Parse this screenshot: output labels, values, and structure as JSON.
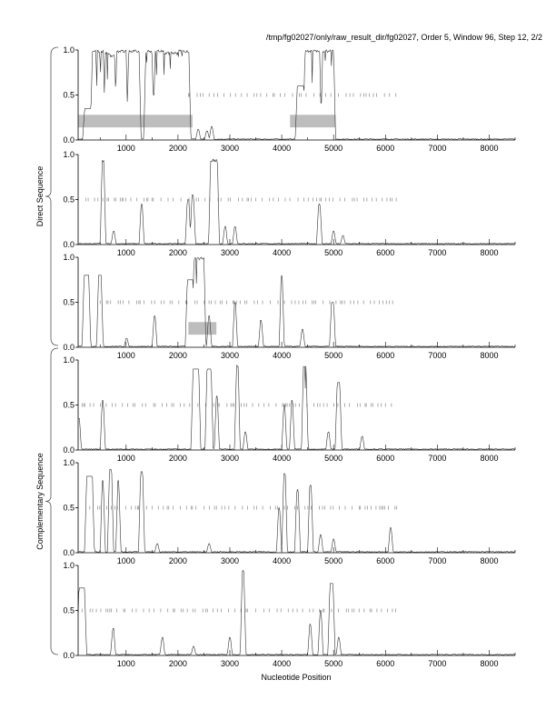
{
  "title": "/tmp/fg02027/only/raw_result_dir/fg02027, Order 5, Window 96, Step 12, 2/2",
  "chart_data": {
    "type": "line",
    "xlabel": "Nucleotide Position",
    "group_labels": [
      "Direct Sequence",
      "Complementary Sequence"
    ],
    "xlim": [
      75,
      8500
    ],
    "ylim": [
      0,
      1
    ],
    "xticks": [
      1000,
      2000,
      3000,
      4000,
      5000,
      6000,
      7000,
      8000
    ],
    "xtick_labels": [
      "1000",
      "2000",
      "3000",
      "4000",
      "5000",
      "6000",
      "7000",
      "8000"
    ],
    "yticks": [
      0,
      0.5,
      1
    ],
    "ytick_labels": [
      "0.0",
      "0.5",
      "1.0"
    ],
    "colors": {
      "line": "#333333",
      "gene_box": "#bdbdbd",
      "stop_tick": "#888888"
    },
    "panels": [
      {
        "strand": "direct",
        "frame": 1,
        "peaks": [
          [
            200,
            330,
            0.35
          ],
          [
            350,
            560,
            1.0
          ],
          [
            600,
            690,
            0.98
          ],
          [
            700,
            780,
            0.95
          ],
          [
            820,
            1000,
            1.0
          ],
          [
            1050,
            1250,
            1.0
          ],
          [
            1380,
            1500,
            1.0
          ],
          [
            1520,
            1540,
            0.5
          ],
          [
            1560,
            1720,
            1.0
          ],
          [
            1730,
            2000,
            0.98
          ],
          [
            2010,
            2210,
            1.0
          ],
          [
            2380,
            2400,
            0.12
          ],
          [
            2550,
            2570,
            0.1
          ],
          [
            2640,
            2660,
            0.15
          ],
          [
            4300,
            4420,
            0.6
          ],
          [
            4450,
            4730,
            1.0
          ],
          [
            4790,
            5000,
            1.0
          ]
        ],
        "genes": [
          [
            77,
            2280
          ],
          [
            4160,
            5040
          ]
        ],
        "stop_range": [
          2200,
          6250
        ]
      },
      {
        "strand": "direct",
        "frame": 2,
        "peaks": [
          [
            540,
            570,
            0.95
          ],
          [
            750,
            770,
            0.15
          ],
          [
            1290,
            1310,
            0.45
          ],
          [
            2180,
            2210,
            0.5
          ],
          [
            2270,
            2300,
            0.55
          ],
          [
            2630,
            2760,
            0.95
          ],
          [
            2900,
            2920,
            0.2
          ],
          [
            3090,
            3110,
            0.2
          ],
          [
            4710,
            4740,
            0.45
          ],
          [
            4990,
            5010,
            0.15
          ],
          [
            5170,
            5190,
            0.1
          ]
        ],
        "genes": [],
        "stop_range": [
          75,
          6250
        ]
      },
      {
        "strand": "direct",
        "frame": 3,
        "peaks": [
          [
            190,
            280,
            0.8
          ],
          [
            470,
            520,
            0.8
          ],
          [
            1000,
            1020,
            0.1
          ],
          [
            1540,
            1560,
            0.35
          ],
          [
            2180,
            2290,
            0.75
          ],
          [
            2310,
            2500,
            1.0
          ],
          [
            2590,
            2610,
            0.35
          ],
          [
            3090,
            3110,
            0.5
          ],
          [
            3590,
            3610,
            0.3
          ],
          [
            3990,
            4010,
            0.8
          ],
          [
            4390,
            4410,
            0.2
          ],
          [
            4960,
            5000,
            0.5
          ]
        ],
        "genes": [
          [
            2200,
            2740
          ]
        ],
        "stop_range": [
          500,
          6250
        ]
      },
      {
        "strand": "complementary",
        "frame": 1,
        "peaks": [
          [
            75,
            100,
            0.35
          ],
          [
            540,
            560,
            0.55
          ],
          [
            2290,
            2400,
            0.9
          ],
          [
            2560,
            2640,
            0.9
          ],
          [
            2740,
            2760,
            0.6
          ],
          [
            3130,
            3160,
            0.95
          ],
          [
            3290,
            3310,
            0.2
          ],
          [
            4040,
            4060,
            0.5
          ],
          [
            4190,
            4210,
            0.55
          ],
          [
            4420,
            4470,
            0.95
          ],
          [
            4890,
            4910,
            0.2
          ],
          [
            5070,
            5120,
            0.75
          ],
          [
            5540,
            5560,
            0.15
          ]
        ],
        "genes": [],
        "stop_range": [
          150,
          6250
        ]
      },
      {
        "strand": "complementary",
        "frame": 2,
        "peaks": [
          [
            240,
            350,
            0.85
          ],
          [
            540,
            560,
            0.8
          ],
          [
            680,
            720,
            0.95
          ],
          [
            840,
            860,
            0.8
          ],
          [
            1280,
            1320,
            0.9
          ],
          [
            1590,
            1610,
            0.1
          ],
          [
            2590,
            2610,
            0.1
          ],
          [
            3940,
            3960,
            0.5
          ],
          [
            4040,
            4070,
            0.88
          ],
          [
            4290,
            4320,
            0.7
          ],
          [
            4540,
            4570,
            0.75
          ],
          [
            4740,
            4760,
            0.2
          ],
          [
            4990,
            5010,
            0.15
          ],
          [
            6090,
            6110,
            0.28
          ]
        ],
        "genes": [],
        "stop_range": [
          300,
          6250
        ]
      },
      {
        "strand": "complementary",
        "frame": 3,
        "peaks": [
          [
            90,
            200,
            0.75
          ],
          [
            740,
            760,
            0.3
          ],
          [
            1690,
            1710,
            0.2
          ],
          [
            2290,
            2310,
            0.1
          ],
          [
            2990,
            3010,
            0.2
          ],
          [
            3240,
            3270,
            0.95
          ],
          [
            4540,
            4560,
            0.35
          ],
          [
            4740,
            4760,
            0.5
          ],
          [
            4930,
            4990,
            0.8
          ],
          [
            5090,
            5110,
            0.2
          ]
        ],
        "genes": [],
        "stop_range": [
          150,
          6250
        ]
      }
    ]
  }
}
